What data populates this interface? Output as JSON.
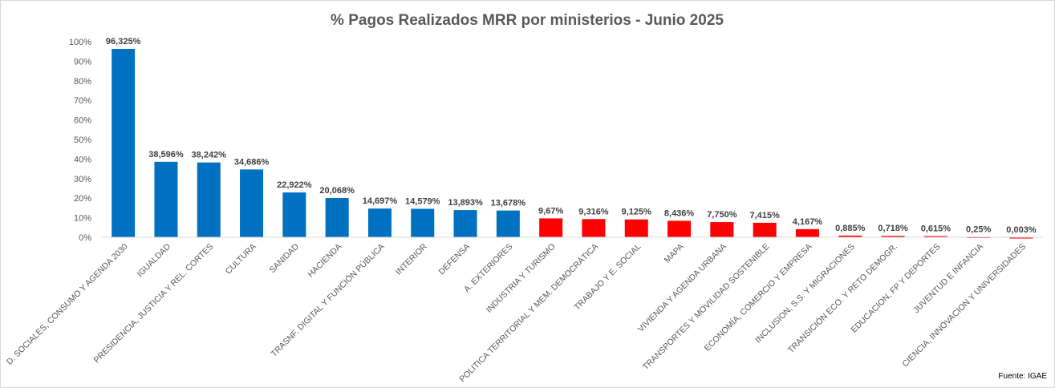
{
  "chart_data": {
    "type": "bar",
    "title": "% Pagos Realizados MRR por ministerios - Junio 2025",
    "source": "Fuente: IGAE",
    "ylim": [
      0,
      100
    ],
    "yticks": [
      "0%",
      "10%",
      "20%",
      "30%",
      "40%",
      "50%",
      "60%",
      "70%",
      "80%",
      "90%",
      "100%"
    ],
    "grid": false,
    "colors": {
      "top": "#0070C0",
      "rest": "#FF0000"
    },
    "categories": [
      "D. SOCIALES, CONSUMO Y AGENDA 2030",
      "IGUALDAD",
      "PRESIDENCIA, JUSTICIA Y REL. CORTES",
      "CULTURA",
      "SANIDAD",
      "HACIENDA",
      "TRASNF. DIGITAL Y FUNCIÓN PÚBLICA",
      "INTERIOR",
      "DEFENSA",
      "A. EXTERIORES",
      "INDUSTRIA Y TURISMO",
      "POLITICA TERRITORIAL Y MEM. DEMOCRÁTICA",
      "TRABAJO Y E. SOCIAL",
      "MAPA",
      "VIVIENDA Y AGENDA URBANA",
      "TRANSPORTES Y MOVILIDAD SOSTENIBLE",
      "ECONOMÍA, COMERCIO Y EMPRESA",
      "INCLUSION, S.S. Y MIGRACIONES",
      "TRANSICIÓN ECO. Y RETO DEMOGR.",
      "EDUCACION, FP Y DEPORTES",
      "JUVENTUD E INFANCIA",
      "CIENCIA, INNOVACION Y UNIVERSIDADES"
    ],
    "values": [
      96.325,
      38.596,
      38.242,
      34.686,
      22.922,
      20.068,
      14.697,
      14.579,
      13.893,
      13.678,
      9.67,
      9.316,
      9.125,
      8.436,
      7.75,
      7.415,
      4.167,
      0.885,
      0.718,
      0.615,
      0.25,
      0.003
    ],
    "data_labels": [
      "96,325%",
      "38,596%",
      "38,242%",
      "34,686%",
      "22,922%",
      "20,068%",
      "14,697%",
      "14,579%",
      "13,893%",
      "13,678%",
      "9,67%",
      "9,316%",
      "9,125%",
      "8,436%",
      "7,750%",
      "7,415%",
      "4,167%",
      "0,885%",
      "0,718%",
      "0,615%",
      "0,25%",
      "0,003%"
    ],
    "bar_colors": [
      "top",
      "top",
      "top",
      "top",
      "top",
      "top",
      "top",
      "top",
      "top",
      "top",
      "rest",
      "rest",
      "rest",
      "rest",
      "rest",
      "rest",
      "rest",
      "rest",
      "rest",
      "rest",
      "rest",
      "rest"
    ]
  }
}
